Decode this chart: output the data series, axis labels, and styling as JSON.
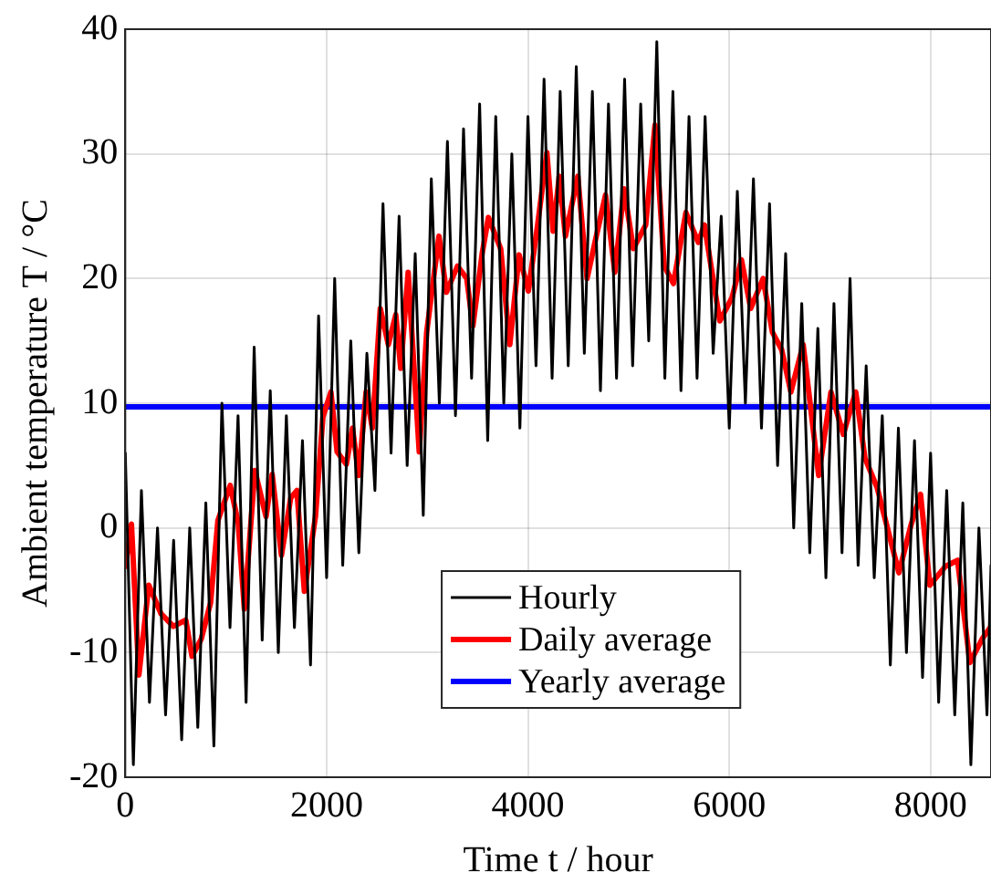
{
  "chart_data": {
    "type": "line",
    "xlabel": "Time t / hour",
    "ylabel": "Ambient temperature T / °C",
    "xlim": [
      0,
      8600
    ],
    "xticks": [
      0,
      2000,
      4000,
      6000,
      8000
    ],
    "ylim": [
      -20,
      40
    ],
    "yticks": [
      -20,
      -10,
      0,
      10,
      20,
      30,
      40
    ],
    "grid": true,
    "legend": "bottom",
    "marker": "none",
    "line_style": "solid",
    "series": [
      {
        "name": "Hourly",
        "color": "#000000",
        "x": [
          0,
          80,
          160,
          240,
          320,
          400,
          480,
          560,
          640,
          720,
          800,
          880,
          960,
          1040,
          1120,
          1200,
          1280,
          1360,
          1440,
          1520,
          1600,
          1680,
          1760,
          1840,
          1920,
          2000,
          2080,
          2160,
          2240,
          2320,
          2400,
          2480,
          2560,
          2640,
          2720,
          2800,
          2880,
          2960,
          3040,
          3120,
          3200,
          3280,
          3360,
          3440,
          3520,
          3600,
          3680,
          3760,
          3840,
          3920,
          4000,
          4080,
          4160,
          4240,
          4320,
          4400,
          4480,
          4560,
          4640,
          4720,
          4800,
          4880,
          4960,
          5040,
          5120,
          5200,
          5280,
          5360,
          5440,
          5520,
          5600,
          5680,
          5760,
          5840,
          5920,
          6000,
          6080,
          6160,
          6240,
          6320,
          6400,
          6480,
          6560,
          6640,
          6720,
          6800,
          6880,
          6960,
          7040,
          7120,
          7200,
          7280,
          7360,
          7440,
          7520,
          7600,
          7680,
          7760,
          7840,
          7920,
          8000,
          8080,
          8160,
          8240,
          8320,
          8400,
          8480,
          8560,
          8600
        ],
        "values": [
          6,
          -19,
          3,
          -14,
          0,
          -15,
          -1,
          -17,
          0,
          -16,
          2,
          -17.5,
          10,
          -8,
          9,
          -14,
          14.5,
          -9,
          11,
          -10,
          9,
          -8,
          7,
          -11,
          17,
          -4,
          20,
          -3,
          15,
          -2,
          14,
          3,
          26,
          6,
          25,
          5,
          22,
          1,
          28,
          10,
          31,
          9,
          32,
          12,
          34,
          7,
          33,
          10,
          30,
          8,
          33,
          13,
          36,
          12,
          35,
          13,
          37,
          14,
          35,
          11,
          34,
          12,
          36,
          13,
          34,
          15,
          39,
          12,
          35,
          11,
          33,
          12,
          33,
          14,
          25,
          8,
          27,
          10,
          28,
          8,
          26,
          5,
          22,
          0,
          18,
          -2,
          16,
          -4,
          18,
          -2,
          20,
          -3,
          13,
          -4,
          9,
          -11,
          8,
          -10,
          7,
          -12,
          6,
          -14,
          3,
          -15,
          2,
          -19,
          0,
          -15,
          -3
        ]
      },
      {
        "name": "Daily average",
        "color": "#ff0000",
        "x": [
          0,
          61,
          135,
          233,
          356,
          478,
          601,
          663,
          755,
          847,
          920,
          1042,
          1122,
          1183,
          1287,
          1398,
          1459,
          1551,
          1643,
          1705,
          1779,
          1889,
          1963,
          2043,
          2104,
          2196,
          2257,
          2319,
          2392,
          2454,
          2533,
          2613,
          2687,
          2736,
          2810,
          2920,
          2994,
          3116,
          3190,
          3300,
          3392,
          3453,
          3545,
          3607,
          3729,
          3820,
          3912,
          4004,
          4096,
          4188,
          4250,
          4311,
          4372,
          4495,
          4587,
          4679,
          4771,
          4863,
          4955,
          5047,
          5170,
          5262,
          5354,
          5446,
          5569,
          5692,
          5753,
          5906,
          6029,
          6121,
          6213,
          6336,
          6428,
          6520,
          6612,
          6734,
          6888,
          7010,
          7133,
          7256,
          7348,
          7470,
          7593,
          7685,
          7808,
          7900,
          7992,
          8145,
          8268,
          8390,
          8513,
          8600
        ],
        "values": [
          -3.1,
          0.3,
          -11.8,
          -4.6,
          -6.9,
          -7.9,
          -7.4,
          -10.3,
          -8.9,
          -6,
          0.6,
          3.4,
          0.4,
          -6.5,
          4.6,
          0.9,
          4.3,
          -2.2,
          2.4,
          3,
          -5.1,
          0.9,
          8.9,
          10.9,
          6.1,
          5.1,
          8,
          4.2,
          10.9,
          8,
          17.6,
          14.7,
          17.1,
          12.8,
          20.5,
          6.1,
          15.7,
          23.4,
          18.9,
          21,
          20,
          16.2,
          22,
          24.9,
          22.4,
          14.7,
          21.9,
          19,
          24.3,
          30.1,
          23.8,
          28.2,
          23.4,
          28.2,
          20,
          23.4,
          26.7,
          20.5,
          27.2,
          22.4,
          24.3,
          32.3,
          21,
          19.6,
          25.3,
          22.9,
          24.3,
          16.6,
          18.5,
          21.5,
          17.6,
          20,
          15.7,
          14.3,
          10.9,
          14.7,
          4.2,
          10.9,
          7.5,
          10.9,
          5.6,
          3.2,
          -0.7,
          -3.6,
          0.3,
          2.7,
          -4.6,
          -3.1,
          -2.6,
          -10.8,
          -8.9,
          -7.9
        ]
      },
      {
        "name": "Yearly average",
        "color": "#0000ff",
        "x": [
          0,
          8600
        ],
        "values": [
          9.7,
          9.7
        ]
      }
    ]
  }
}
